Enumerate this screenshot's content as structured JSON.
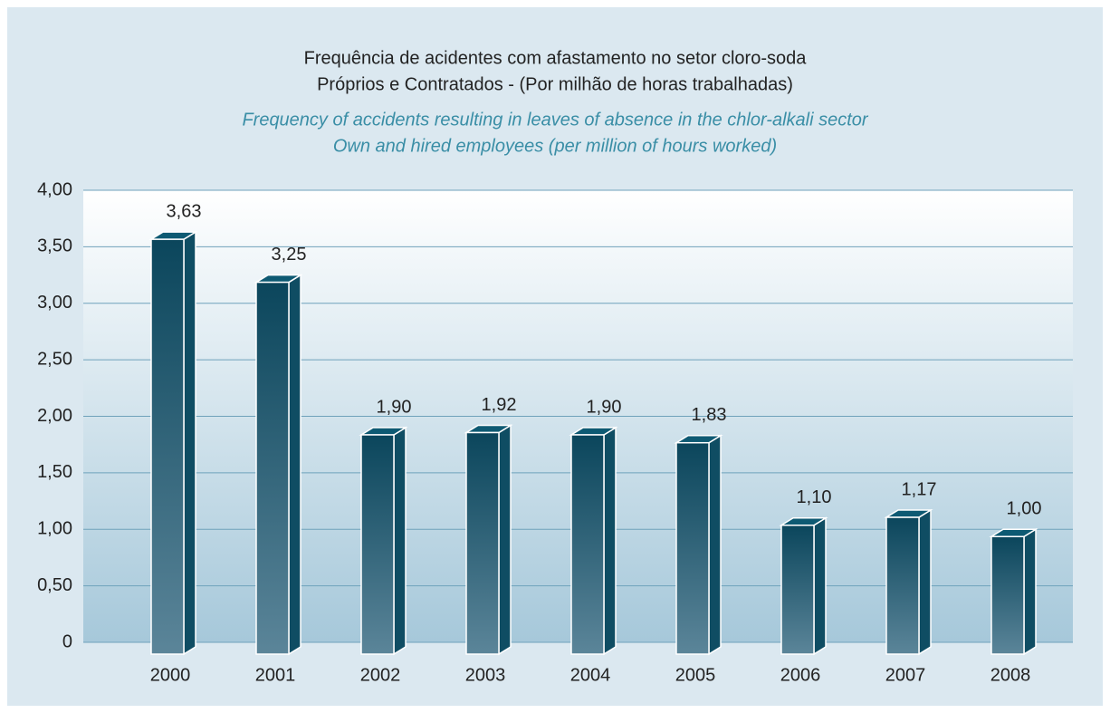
{
  "chart_data": {
    "type": "bar3d",
    "title": [
      "Frequência de acidentes com afastamento no setor cloro-soda",
      "Próprios e Contratados - (Por milhão de horas trabalhadas)"
    ],
    "subtitle": [
      "Frequency of accidents resulting in leaves of absence in the chlor-alkali sector",
      "Own and hired employees (per million of hours worked)"
    ],
    "categories": [
      "2000",
      "2001",
      "2002",
      "2003",
      "2004",
      "2005",
      "2006",
      "2007",
      "2008"
    ],
    "values": [
      3.63,
      3.25,
      1.9,
      1.92,
      1.9,
      1.83,
      1.1,
      1.17,
      1.0
    ],
    "value_labels": [
      "3,63",
      "3,25",
      "1,90",
      "1,92",
      "1,90",
      "1,83",
      "1,10",
      "1,17",
      "1,00"
    ],
    "color": "#0f4d63",
    "ylim": [
      0,
      4
    ],
    "yticks": [
      0,
      {
        "value": 0.5,
        "label": "0,50"
      },
      {
        "value": 1,
        "label": "1,00"
      },
      {
        "value": 1.5,
        "label": "1,50"
      },
      {
        "value": 2,
        "label": "2,00"
      },
      {
        "value": 2.5,
        "label": "2,50"
      },
      {
        "value": 3,
        "label": "3,00"
      },
      {
        "value": 3.5,
        "label": "3,50"
      },
      {
        "value": 4,
        "label": "4,00"
      }
    ],
    "grid": true
  }
}
